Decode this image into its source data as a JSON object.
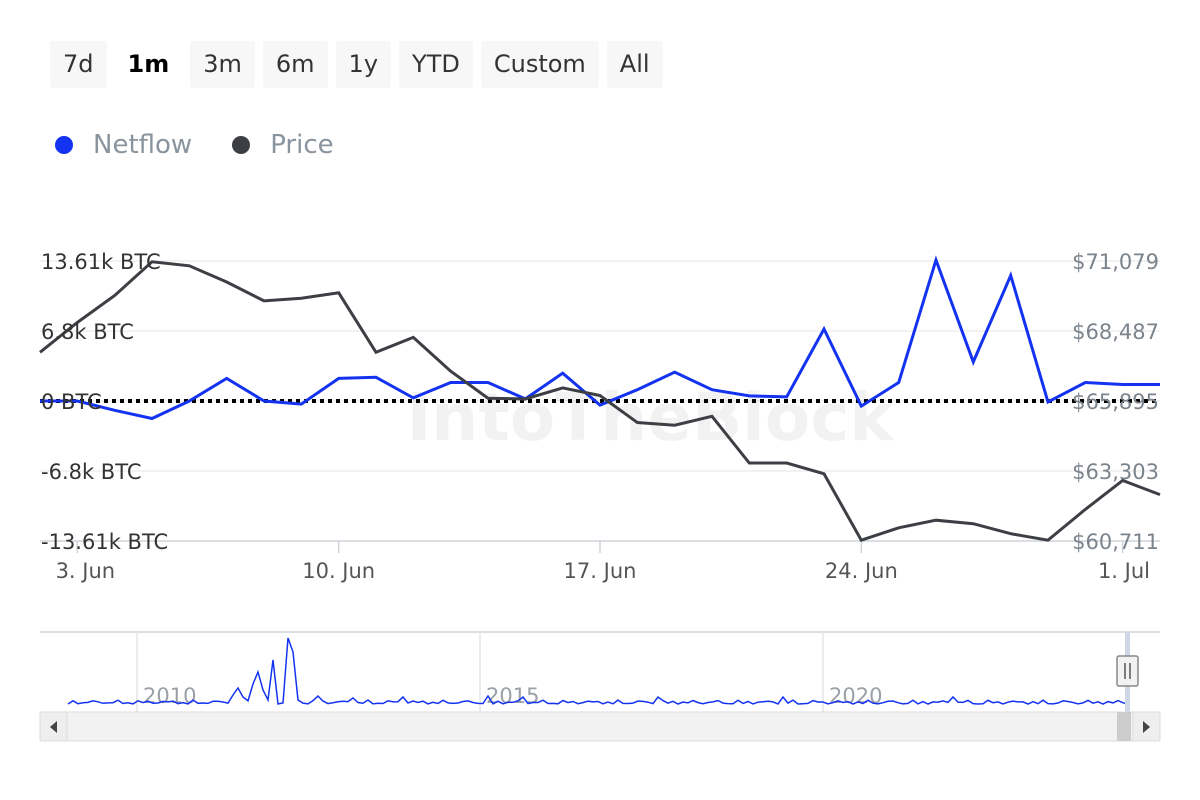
{
  "range_buttons": [
    {
      "label": "7d",
      "active": false
    },
    {
      "label": "1m",
      "active": true
    },
    {
      "label": "3m",
      "active": false
    },
    {
      "label": "6m",
      "active": false
    },
    {
      "label": "1y",
      "active": false
    },
    {
      "label": "YTD",
      "active": false
    },
    {
      "label": "Custom",
      "active": false
    },
    {
      "label": "All",
      "active": false
    }
  ],
  "legend": [
    {
      "label": "Netflow",
      "color": "#1433f0"
    },
    {
      "label": "Price",
      "color": "#3d3f44"
    }
  ],
  "watermark": "IntoTheBlock",
  "chart_data": {
    "type": "line",
    "x_ticks": [
      "3. Jun",
      "10. Jun",
      "17. Jun",
      "24. Jun",
      "1. Jul"
    ],
    "x_start": "2024-06-02",
    "x_end": "2024-07-02",
    "y_left": {
      "ticks": [
        "13.61k BTC",
        "6.8k BTC",
        "0 BTC",
        "-6.8k BTC",
        "-13.61k BTC"
      ],
      "range": [
        -13610,
        13610
      ]
    },
    "y_right": {
      "ticks": [
        "$71,079",
        "$68,487",
        "$65,895",
        "$63,303",
        "$60,711"
      ],
      "range": [
        60711,
        71079
      ]
    },
    "grid": true,
    "zero_line": "dotted",
    "series": [
      {
        "name": "Netflow",
        "axis": "left",
        "color": "#1433f0",
        "x": [
          "2024-06-02",
          "2024-06-03",
          "2024-06-04",
          "2024-06-05",
          "2024-06-06",
          "2024-06-07",
          "2024-06-08",
          "2024-06-09",
          "2024-06-10",
          "2024-06-11",
          "2024-06-12",
          "2024-06-13",
          "2024-06-14",
          "2024-06-15",
          "2024-06-16",
          "2024-06-17",
          "2024-06-18",
          "2024-06-19",
          "2024-06-20",
          "2024-06-21",
          "2024-06-22",
          "2024-06-23",
          "2024-06-24",
          "2024-06-25",
          "2024-06-26",
          "2024-06-27",
          "2024-06-28",
          "2024-06-29",
          "2024-06-30",
          "2024-07-01",
          "2024-07-02"
        ],
        "values": [
          0,
          0,
          -900,
          -1700,
          0,
          2200,
          0,
          -300,
          2200,
          2300,
          300,
          1800,
          1800,
          200,
          2700,
          -400,
          1100,
          2800,
          1100,
          500,
          400,
          7000,
          -500,
          1800,
          13700,
          3800,
          12200,
          -100,
          1800,
          1600,
          1600
        ]
      },
      {
        "name": "Price",
        "axis": "right",
        "color": "#3d3f44",
        "x": [
          "2024-06-02",
          "2024-06-03",
          "2024-06-04",
          "2024-06-05",
          "2024-06-06",
          "2024-06-07",
          "2024-06-08",
          "2024-06-09",
          "2024-06-10",
          "2024-06-11",
          "2024-06-12",
          "2024-06-13",
          "2024-06-14",
          "2024-06-15",
          "2024-06-16",
          "2024-06-17",
          "2024-06-18",
          "2024-06-19",
          "2024-06-20",
          "2024-06-21",
          "2024-06-22",
          "2024-06-23",
          "2024-06-24",
          "2024-06-25",
          "2024-06-26",
          "2024-06-27",
          "2024-06-28",
          "2024-06-29",
          "2024-06-30",
          "2024-07-01",
          "2024-07-02"
        ],
        "values": [
          67700,
          68800,
          69800,
          71050,
          70900,
          70300,
          69600,
          69700,
          69900,
          67700,
          68250,
          67000,
          66000,
          65970,
          66380,
          66100,
          65100,
          65000,
          65330,
          63600,
          63600,
          63200,
          60740,
          61200,
          61480,
          61350,
          60980,
          60740,
          61880,
          62950,
          62430
        ]
      }
    ]
  },
  "navigator": {
    "labels": [
      "2010",
      "2015",
      "2020"
    ]
  }
}
